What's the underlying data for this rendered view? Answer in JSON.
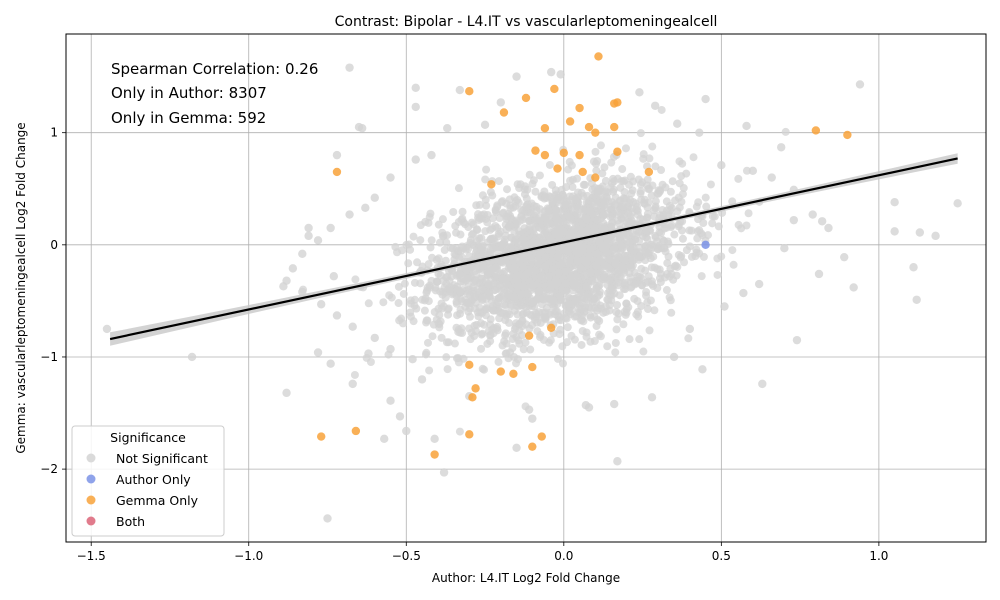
{
  "chart_data": {
    "type": "scatter",
    "title": "Contrast: Bipolar - L4.IT vs vascularleptomeningealcell",
    "xlabel": "Author: L4.IT Log2 Fold Change",
    "ylabel": "Gemma: vascularleptomeningealcell Log2 Fold Change",
    "xlim": [
      -1.58,
      1.34
    ],
    "ylim": [
      -2.65,
      1.88
    ],
    "xticks": [
      -1.5,
      -1.0,
      -0.5,
      0,
      0.5,
      1.0
    ],
    "xtick_labels": [
      "−1.5",
      "−1.0",
      "−0.5",
      "0.0",
      "0.5",
      "1.0"
    ],
    "yticks": [
      -2,
      -1,
      0,
      1
    ],
    "ytick_labels": [
      "−2",
      "−1",
      "0",
      "1"
    ],
    "grid": true,
    "annotations": [
      "Spearman Correlation: 0.26",
      "Only in Author: 8307",
      "Only in Gemma: 592"
    ],
    "legend": {
      "title": "Significance",
      "placement": "lower-left",
      "entries": [
        {
          "label": "Not Significant",
          "color": "#d3d3d3"
        },
        {
          "label": "Author Only",
          "color": "#7b93e6"
        },
        {
          "label": "Gemma Only",
          "color": "#f8a23a"
        },
        {
          "label": "Both",
          "color": "#dc6478"
        }
      ]
    },
    "regression": {
      "x": [
        -1.44,
        1.25
      ],
      "y": [
        -0.84,
        0.77
      ],
      "color": "#000000"
    },
    "series": [
      {
        "name": "Not Significant",
        "color": "#d3d3d3",
        "points": [
          [
            -1.45,
            -0.75
          ],
          [
            -1.18,
            -1.0
          ],
          [
            -0.88,
            -1.32
          ],
          [
            -0.89,
            -0.37
          ],
          [
            -0.86,
            -0.21
          ],
          [
            -0.81,
            0.15
          ],
          [
            -0.81,
            0.08
          ],
          [
            -0.75,
            -2.44
          ],
          [
            -0.73,
            -0.28
          ],
          [
            -0.72,
            0.8
          ],
          [
            -0.68,
            1.58
          ],
          [
            -0.65,
            1.05
          ],
          [
            -0.64,
            1.04
          ],
          [
            -0.47,
            1.23
          ],
          [
            -0.47,
            1.4
          ],
          [
            -0.33,
            1.38
          ],
          [
            -0.15,
            1.5
          ],
          [
            -0.04,
            1.54
          ],
          [
            -0.01,
            1.52
          ],
          [
            0.24,
            1.36
          ],
          [
            0.45,
            1.3
          ],
          [
            0.94,
            1.43
          ],
          [
            0.58,
            1.06
          ],
          [
            0.69,
            0.87
          ],
          [
            1.05,
            0.38
          ],
          [
            1.05,
            0.12
          ],
          [
            1.13,
            0.11
          ],
          [
            1.18,
            0.08
          ],
          [
            1.25,
            0.37
          ],
          [
            1.11,
            -0.2
          ],
          [
            1.12,
            -0.49
          ],
          [
            0.92,
            -0.38
          ],
          [
            0.89,
            -0.11
          ],
          [
            0.81,
            -0.26
          ],
          [
            0.74,
            -0.85
          ],
          [
            0.63,
            -1.24
          ],
          [
            0.44,
            -1.11
          ],
          [
            0.16,
            -1.42
          ],
          [
            0.17,
            -1.93
          ],
          [
            0.08,
            -1.45
          ],
          [
            0.07,
            -1.43
          ],
          [
            -0.11,
            -1.47
          ],
          [
            -0.1,
            -1.55
          ],
          [
            -0.15,
            -1.81
          ],
          [
            -0.38,
            -2.03
          ],
          [
            -0.41,
            -1.73
          ],
          [
            -0.5,
            -1.66
          ],
          [
            -0.52,
            -1.53
          ],
          [
            -0.55,
            -1.39
          ],
          [
            -0.57,
            -1.73
          ],
          [
            -0.67,
            -1.24
          ],
          [
            -0.74,
            -1.06
          ],
          [
            -0.78,
            -0.96
          ],
          [
            -0.62,
            -0.97
          ],
          [
            -0.45,
            -1.2
          ],
          [
            -0.3,
            -1.35
          ],
          [
            0.28,
            -1.36
          ],
          [
            0.35,
            -1.0
          ],
          [
            0.4,
            -0.75
          ],
          [
            0.51,
            -0.55
          ],
          [
            0.57,
            -0.43
          ],
          [
            0.62,
            -0.35
          ],
          [
            0.7,
            -0.03
          ],
          [
            0.73,
            0.22
          ],
          [
            0.82,
            0.21
          ],
          [
            0.84,
            0.15
          ],
          [
            0.79,
            0.27
          ],
          [
            0.73,
            0.49
          ],
          [
            0.66,
            0.6
          ],
          [
            0.6,
            0.66
          ],
          [
            0.5,
            0.71
          ],
          [
            0.43,
            1.0
          ],
          [
            0.36,
            1.08
          ],
          [
            0.29,
            1.24
          ],
          [
            -0.2,
            1.27
          ],
          [
            -0.25,
            1.07
          ],
          [
            -0.37,
            1.04
          ],
          [
            -0.42,
            0.8
          ],
          [
            -0.47,
            0.76
          ],
          [
            -0.55,
            0.6
          ],
          [
            -0.6,
            0.42
          ],
          [
            -0.63,
            0.33
          ],
          [
            -0.68,
            0.27
          ],
          [
            -0.74,
            0.15
          ],
          [
            -0.78,
            0.04
          ],
          [
            -0.83,
            -0.08
          ],
          [
            -0.88,
            -0.32
          ],
          [
            -0.83,
            -0.42
          ],
          [
            -0.77,
            -0.53
          ],
          [
            -0.72,
            -0.63
          ],
          [
            -0.67,
            -0.73
          ],
          [
            -0.6,
            -0.83
          ],
          [
            -0.55,
            -0.93
          ],
          [
            -0.48,
            -1.02
          ]
        ]
      },
      {
        "name": "Author Only",
        "color": "#7b93e6",
        "points": [
          [
            0.45,
            0.0
          ]
        ]
      },
      {
        "name": "Gemma Only",
        "color": "#f8a23a",
        "points": [
          [
            0.11,
            1.68
          ],
          [
            -0.3,
            1.37
          ],
          [
            -0.12,
            1.31
          ],
          [
            -0.03,
            1.39
          ],
          [
            -0.19,
            1.18
          ],
          [
            0.17,
            1.27
          ],
          [
            0.16,
            1.26
          ],
          [
            0.05,
            1.22
          ],
          [
            0.02,
            1.1
          ],
          [
            -0.06,
            1.04
          ],
          [
            0.08,
            1.05
          ],
          [
            0.1,
            1.0
          ],
          [
            0.16,
            1.05
          ],
          [
            0.8,
            1.02
          ],
          [
            0.9,
            0.98
          ],
          [
            0.17,
            0.83
          ],
          [
            0.05,
            0.8
          ],
          [
            0.0,
            0.82
          ],
          [
            -0.06,
            0.8
          ],
          [
            -0.09,
            0.84
          ],
          [
            -0.72,
            0.65
          ],
          [
            0.27,
            0.65
          ],
          [
            -0.23,
            0.54
          ],
          [
            -0.77,
            -1.71
          ],
          [
            -0.66,
            -1.66
          ],
          [
            -0.41,
            -1.87
          ],
          [
            -0.3,
            -1.69
          ],
          [
            -0.1,
            -1.8
          ],
          [
            -0.07,
            -1.71
          ],
          [
            -0.3,
            -1.07
          ],
          [
            -0.29,
            -1.36
          ],
          [
            -0.28,
            -1.28
          ],
          [
            -0.2,
            -1.13
          ],
          [
            -0.16,
            -1.15
          ],
          [
            -0.1,
            -1.09
          ],
          [
            -0.04,
            -0.74
          ],
          [
            -0.11,
            -0.81
          ],
          [
            0.06,
            0.65
          ],
          [
            0.1,
            0.6
          ],
          [
            -0.02,
            0.68
          ]
        ]
      },
      {
        "name": "Both",
        "color": "#dc6478",
        "points": []
      }
    ]
  }
}
